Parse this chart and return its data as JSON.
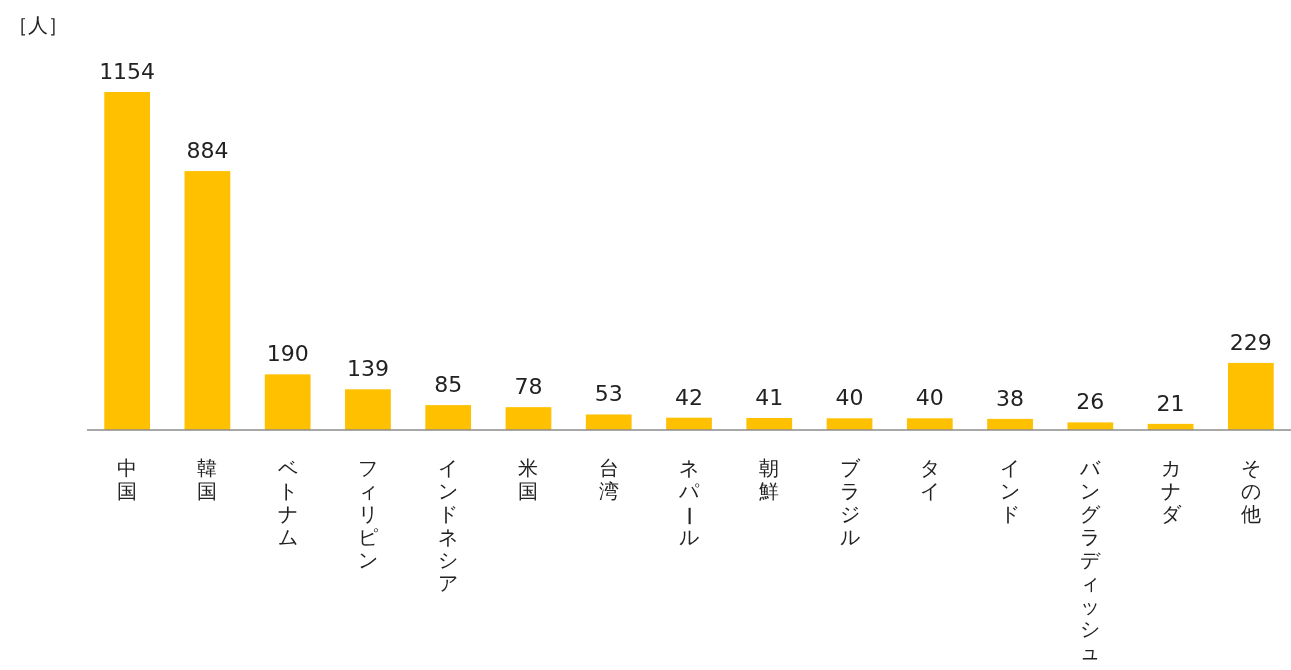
{
  "chart_data": {
    "type": "bar",
    "ylabel": "［人］",
    "categories": [
      "中国",
      "韓国",
      "ベトナム",
      "フィリピン",
      "インドネシア",
      "米国",
      "台湾",
      "ネパール",
      "朝鮮",
      "ブラジル",
      "タイ",
      "インド",
      "バングラディッシュ",
      "カナダ",
      "その他"
    ],
    "values": [
      1154,
      884,
      190,
      139,
      85,
      78,
      53,
      42,
      41,
      40,
      40,
      38,
      26,
      21,
      229
    ],
    "color": "#ffc000",
    "data_labels": true
  }
}
